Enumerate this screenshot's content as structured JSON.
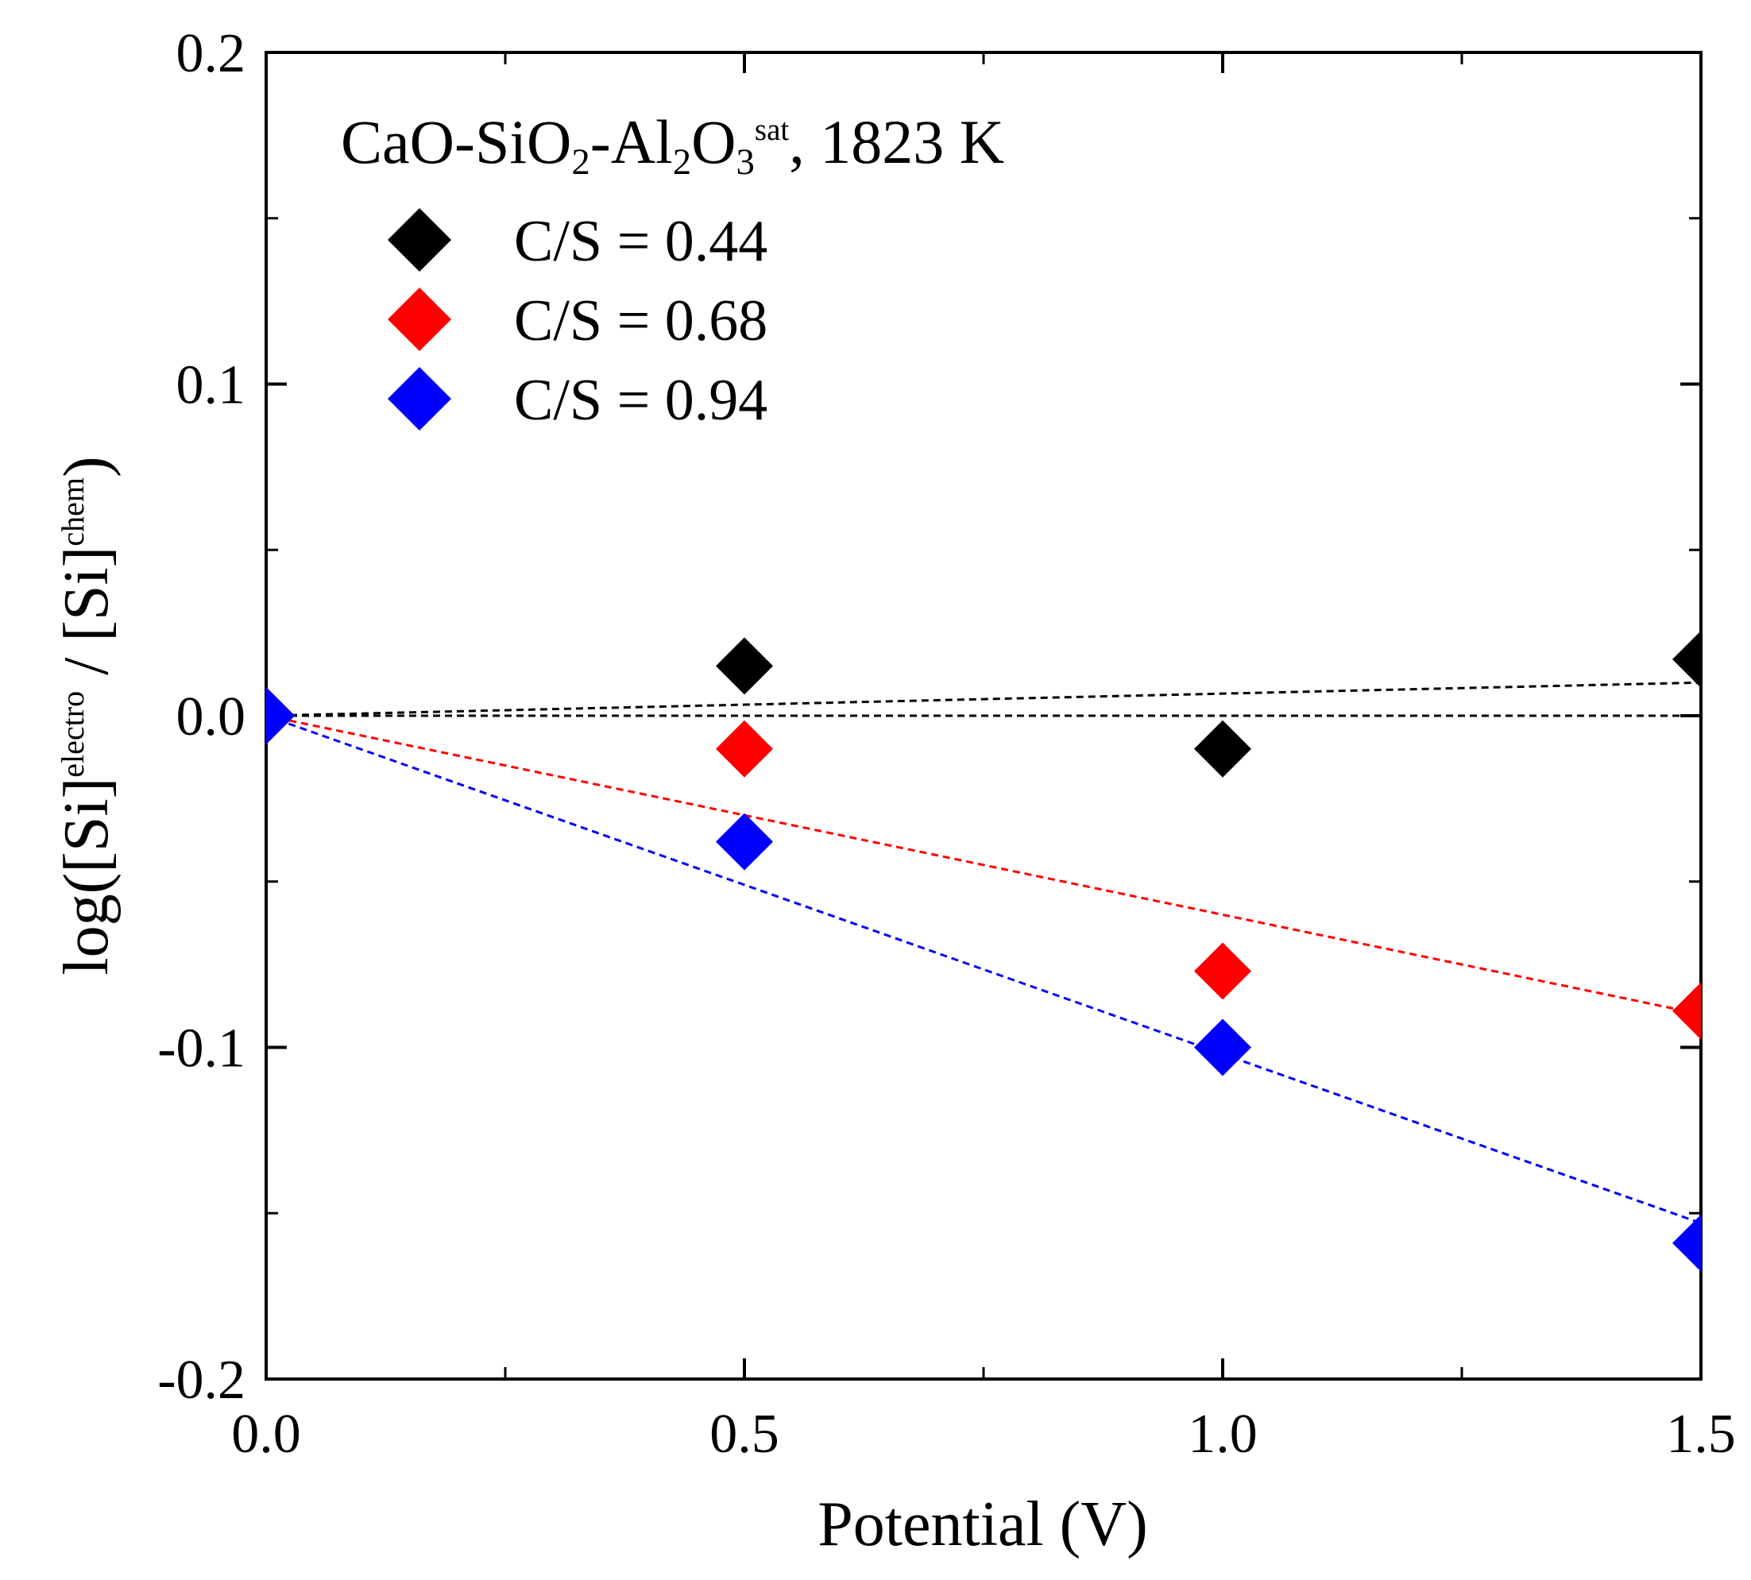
{
  "chart_data": {
    "type": "scatter",
    "annotation": [
      {
        "text": "CaO-SiO",
        "style": "normal"
      },
      {
        "text": "2",
        "style": "sub"
      },
      {
        "text": "-Al",
        "style": "normal"
      },
      {
        "text": "2",
        "style": "sub"
      },
      {
        "text": "O",
        "style": "normal"
      },
      {
        "text": "3",
        "style": "sub"
      },
      {
        "text": "sat",
        "style": "super"
      },
      {
        "text": ", 1823 K",
        "style": "normal"
      }
    ],
    "x_label": "Potential (V)",
    "y_label": [
      {
        "text": "log([Si]",
        "style": "normal"
      },
      {
        "text": "electro",
        "style": "super"
      },
      {
        "text": " / [Si]",
        "style": "normal"
      },
      {
        "text": "chem",
        "style": "super"
      },
      {
        "text": ")",
        "style": "normal"
      }
    ],
    "xlim": [
      0,
      1.5
    ],
    "ylim": [
      -0.2,
      0.2
    ],
    "xticks": [
      {
        "value": 0,
        "label": "0.0"
      },
      0.5,
      {
        "value": 1,
        "label": "1.0"
      },
      1.5
    ],
    "yticks": [
      {
        "value": -0.2,
        "label": "-0.2"
      },
      {
        "value": -0.1,
        "label": "-0.1"
      },
      {
        "value": 0,
        "label": "0.0"
      },
      0.1,
      0.2
    ],
    "minor_xticks": [
      0.25,
      0.75,
      1.25
    ],
    "minor_yticks": [
      -0.15,
      -0.05,
      0.05,
      0.15
    ],
    "grid": false,
    "legend": "upper left",
    "series": [
      {
        "name": "C/S = 0.44",
        "color": "#000000",
        "x": [
          0,
          0.5,
          1,
          1.5
        ],
        "values": [
          0,
          0.015,
          -0.01,
          0.017
        ]
      },
      {
        "name": "C/S = 0.68",
        "color": "#ff0000",
        "x": [
          0,
          0.5,
          1,
          1.5
        ],
        "values": [
          0,
          -0.01,
          -0.077,
          -0.089
        ]
      },
      {
        "name": "C/S = 0.94",
        "color": "#0000ff",
        "x": [
          0,
          0.5,
          1,
          1.5
        ],
        "values": [
          0,
          -0.038,
          -0.1,
          -0.159
        ]
      }
    ],
    "fit_lines": [
      {
        "color": "#000000",
        "x": [
          0,
          1.5
        ],
        "values": [
          0,
          0.01
        ]
      },
      {
        "color": "#000000",
        "x": [
          0,
          1.5
        ],
        "values": [
          0,
          0
        ]
      },
      {
        "color": "#ff0000",
        "x": [
          0,
          1.5
        ],
        "values": [
          0,
          -0.09
        ]
      },
      {
        "color": "#0000ff",
        "x": [
          0,
          1.5
        ],
        "values": [
          0,
          -0.153
        ]
      }
    ]
  }
}
